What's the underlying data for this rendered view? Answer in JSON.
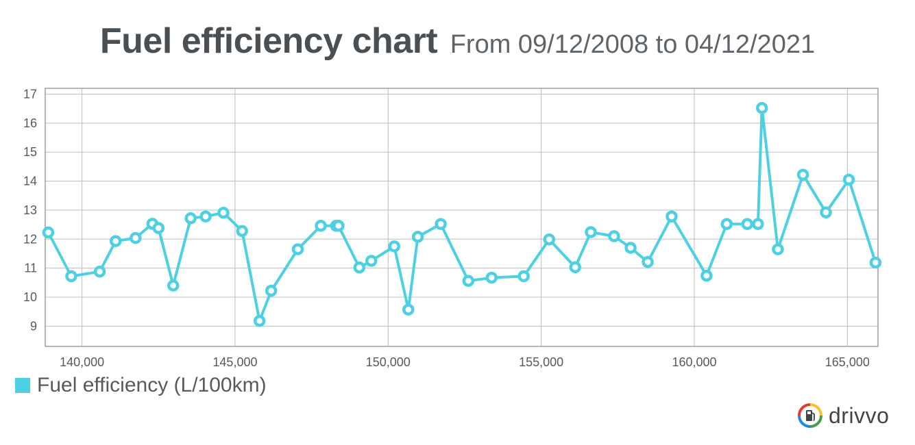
{
  "header": {
    "title": "Fuel efficiency chart",
    "subtitle": "From 09/12/2008 to 04/12/2021"
  },
  "legend": {
    "label": "Fuel efficiency (L/100km)",
    "color": "#4dd0e1"
  },
  "brand": {
    "name": "drivvo",
    "logo_icon": "fuel-pump-icon",
    "logo_colors": [
      "#e53935",
      "#fbc02d",
      "#1e88e5",
      "#43a047"
    ]
  },
  "chart_data": {
    "type": "line",
    "xlim": [
      138800,
      166000
    ],
    "ylim": [
      8.3,
      17.2
    ],
    "x_ticks": [
      140000,
      145000,
      150000,
      155000,
      160000,
      165000
    ],
    "x_tick_labels": [
      "140,000",
      "145,000",
      "150,000",
      "155,000",
      "160,000",
      "165,000"
    ],
    "y_ticks": [
      9,
      10,
      11,
      12,
      13,
      14,
      15,
      16,
      17
    ],
    "y_tick_labels": [
      "9",
      "10",
      "11",
      "12",
      "13",
      "14",
      "15",
      "16",
      "17"
    ],
    "grid": true,
    "legend_position": "bottom-left",
    "series": [
      {
        "name": "Fuel efficiency (L/100km)",
        "color": "#4dd0e1",
        "x": [
          138900,
          139650,
          140580,
          141100,
          141750,
          142300,
          142500,
          142980,
          143550,
          144040,
          144620,
          145230,
          145800,
          146180,
          147050,
          147800,
          148300,
          148380,
          149060,
          149450,
          150200,
          150660,
          150970,
          151720,
          152620,
          153380,
          154430,
          155260,
          156110,
          156620,
          157380,
          157920,
          158480,
          159260,
          160400,
          161060,
          161730,
          162080,
          162210,
          162730,
          163550,
          164300,
          165050,
          165920
        ],
        "y": [
          12.23,
          10.72,
          10.88,
          11.93,
          12.04,
          12.53,
          12.38,
          10.4,
          12.72,
          12.78,
          12.91,
          12.28,
          9.18,
          10.22,
          11.65,
          12.46,
          12.46,
          12.46,
          11.02,
          11.25,
          11.75,
          9.57,
          12.08,
          12.52,
          10.56,
          10.67,
          10.72,
          11.99,
          11.03,
          12.24,
          12.1,
          11.7,
          11.21,
          12.78,
          10.74,
          12.52,
          12.52,
          12.52,
          16.52,
          11.65,
          14.22,
          12.92,
          14.05,
          11.19
        ]
      }
    ]
  }
}
